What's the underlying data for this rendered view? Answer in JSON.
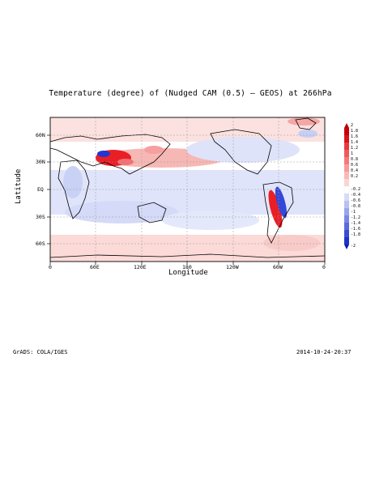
{
  "title": "Temperature (degree) of (Nudged CAM (0.5) — GEOS) at 266hPa",
  "xlabel": "Longitude",
  "ylabel": "Latitude",
  "footer_left": "GrADS: COLA/IGES",
  "footer_right": "2014-10-24-20:37",
  "y_ticks": [
    "60N",
    "30N",
    "EQ",
    "30S",
    "60S"
  ],
  "x_ticks": [
    "0",
    "60E",
    "120E",
    "180",
    "120W",
    "60W",
    "0"
  ],
  "colorbar_labels": [
    "2",
    "1.8",
    "1.6",
    "1.4",
    "1.2",
    "1",
    "0.8",
    "0.6",
    "0.4",
    "0.2",
    "-0.2",
    "-0.4",
    "-0.6",
    "-0.8",
    "-1",
    "-1.2",
    "-1.4",
    "-1.6",
    "-1.8",
    "-2"
  ],
  "colors": {
    "positive": "#e8141a",
    "negative": "#1a2ccc",
    "light_pos": "#fbd7d5",
    "light_neg": "#d9def8"
  }
}
